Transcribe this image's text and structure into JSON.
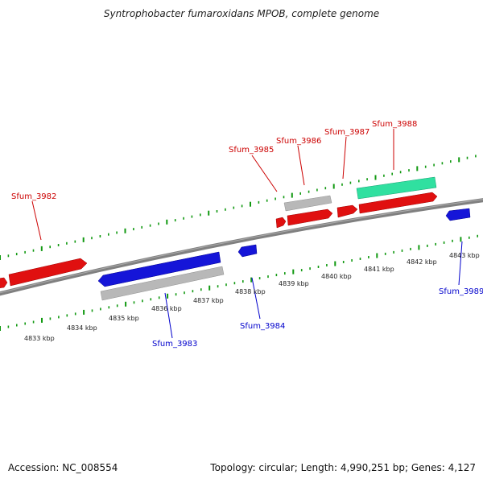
{
  "title": "Syntrophobacter fumaroxidans MPOB, complete genome",
  "footer": {
    "accession": "Accession: NC_008554",
    "topology": "Topology: circular; Length: 4,990,251 bp; Genes: 4,127"
  },
  "colors": {
    "forward_gene": "#e01010",
    "reverse_gene": "#1515d8",
    "pseudo_gene": "#b8b8b8",
    "rna_gene": "#30e0a0",
    "backbone": "#808080",
    "tick": "#119911",
    "forward_label": "#cc0000",
    "reverse_label": "#0000cc"
  },
  "kbp_labels": [
    "4833 kbp",
    "4834 kbp",
    "4835 kbp",
    "4836 kbp",
    "4837 kbp",
    "4838 kbp",
    "4839 kbp",
    "4840 kbp",
    "4841 kbp",
    "4842 kbp",
    "4843 kbp"
  ],
  "gene_labels": {
    "sfum_3982": "Sfum_3982",
    "sfum_3983": "Sfum_3983",
    "sfum_3984": "Sfum_3984",
    "sfum_3985": "Sfum_3985",
    "sfum_3986": "Sfum_3986",
    "sfum_3987": "Sfum_3987",
    "sfum_3988": "Sfum_3988",
    "sfum_3989": "Sfum_3989"
  }
}
